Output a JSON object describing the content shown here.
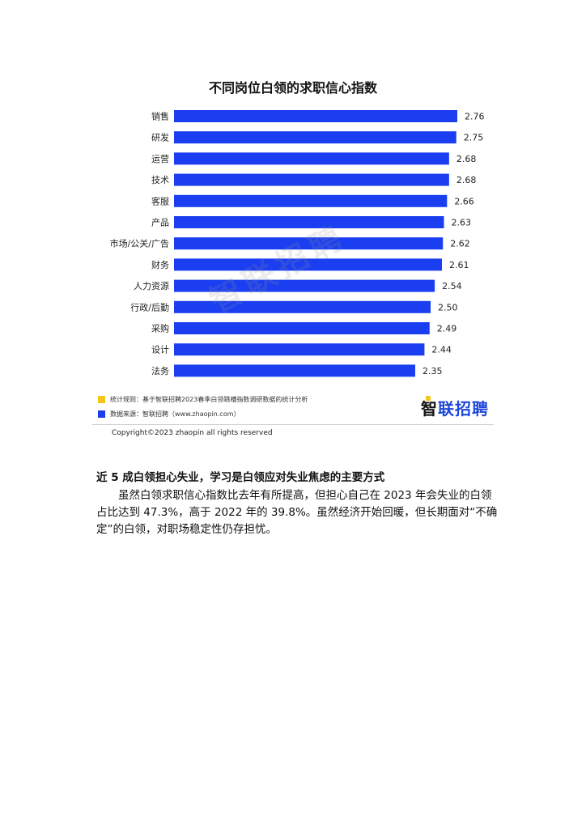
{
  "chart_data": {
    "type": "bar",
    "orientation": "horizontal",
    "title": "不同岗位白领的求职信心指数",
    "categories": [
      "销售",
      "研发",
      "运营",
      "技术",
      "客服",
      "产品",
      "市场/公关/广告",
      "财务",
      "人力资源",
      "行政/后勤",
      "采购",
      "设计",
      "法务"
    ],
    "values": [
      2.76,
      2.75,
      2.68,
      2.68,
      2.66,
      2.63,
      2.62,
      2.61,
      2.54,
      2.5,
      2.49,
      2.44,
      2.35
    ],
    "value_labels": [
      "2.76",
      "2.75",
      "2.68",
      "2.68",
      "2.66",
      "2.63",
      "2.62",
      "2.61",
      "2.54",
      "2.50",
      "2.49",
      "2.44",
      "2.35"
    ],
    "bar_color": "#1a3ef0",
    "grid": false,
    "xlabel": "",
    "ylabel": ""
  },
  "watermark": "智联招聘",
  "legend": [
    {
      "color": "#f5c518",
      "text": "统计规则：基于智联招聘2023春季白领跳槽指数调研数据的统计分析"
    },
    {
      "color": "#1a3ef0",
      "text": "数据来源：智联招聘（www.zhaopin.com）"
    }
  ],
  "logo": {
    "first": "智",
    "rest": "联招聘"
  },
  "copyright": "Copyright©2023 zhaopin all rights reserved",
  "heading": "近 5 成白领担心失业，学习是白领应对失业焦虑的主要方式",
  "paragraph": "虽然白领求职信心指数比去年有所提高，但担心自己在 2023 年会失业的白领占比达到 47.3%，高于 2022 年的 39.8%。虽然经济开始回暖，但长期面对“不确定”的白领，对职场稳定性仍存担忧。"
}
